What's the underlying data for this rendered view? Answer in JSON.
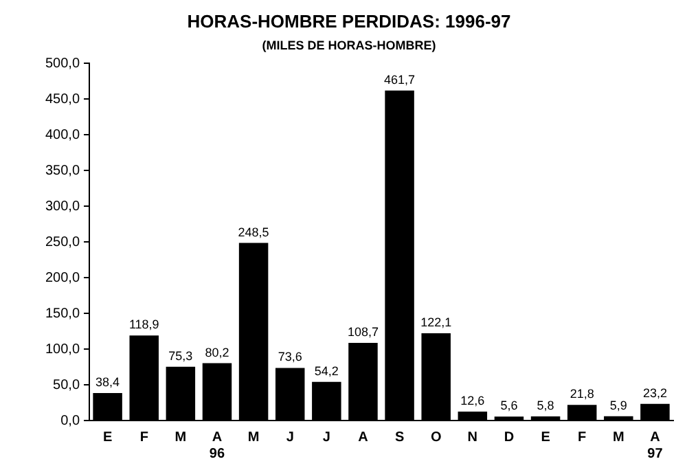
{
  "chart_data": {
    "type": "bar",
    "title": "HORAS-HOMBRE PERDIDAS: 1996-97",
    "subtitle": "(MILES DE HORAS-HOMBRE)",
    "categories": [
      "E",
      "F",
      "M",
      "A\n96",
      "M",
      "J",
      "J",
      "A",
      "S",
      "O",
      "N",
      "D",
      "E",
      "F",
      "M",
      "A\n97"
    ],
    "values": [
      38.4,
      118.9,
      75.3,
      80.2,
      248.5,
      73.6,
      54.2,
      108.7,
      461.7,
      122.1,
      12.6,
      5.6,
      5.8,
      21.8,
      5.9,
      23.2
    ],
    "value_labels": [
      "38,4",
      "118,9",
      "75,3",
      "80,2",
      "248,5",
      "73,6",
      "54,2",
      "108,7",
      "461,7",
      "122,1",
      "12,6",
      "5,6",
      "5,8",
      "21,8",
      "5,9",
      "23,2"
    ],
    "color": "#000000",
    "ylim": [
      0,
      500
    ],
    "yticks": [
      {
        "value": 0,
        "label": "0,0"
      },
      {
        "value": 50,
        "label": "50,0"
      },
      {
        "value": 100,
        "label": "100,0"
      },
      {
        "value": 150,
        "label": "150,0"
      },
      {
        "value": 200,
        "label": "200,0"
      },
      {
        "value": 250,
        "label": "250,0"
      },
      {
        "value": 300,
        "label": "300,0"
      },
      {
        "value": 350,
        "label": "350,0"
      },
      {
        "value": 400,
        "label": "400,0"
      },
      {
        "value": 450,
        "label": "450,0"
      },
      {
        "value": 500,
        "label": "500,0"
      }
    ],
    "grid": false,
    "legend": false
  }
}
